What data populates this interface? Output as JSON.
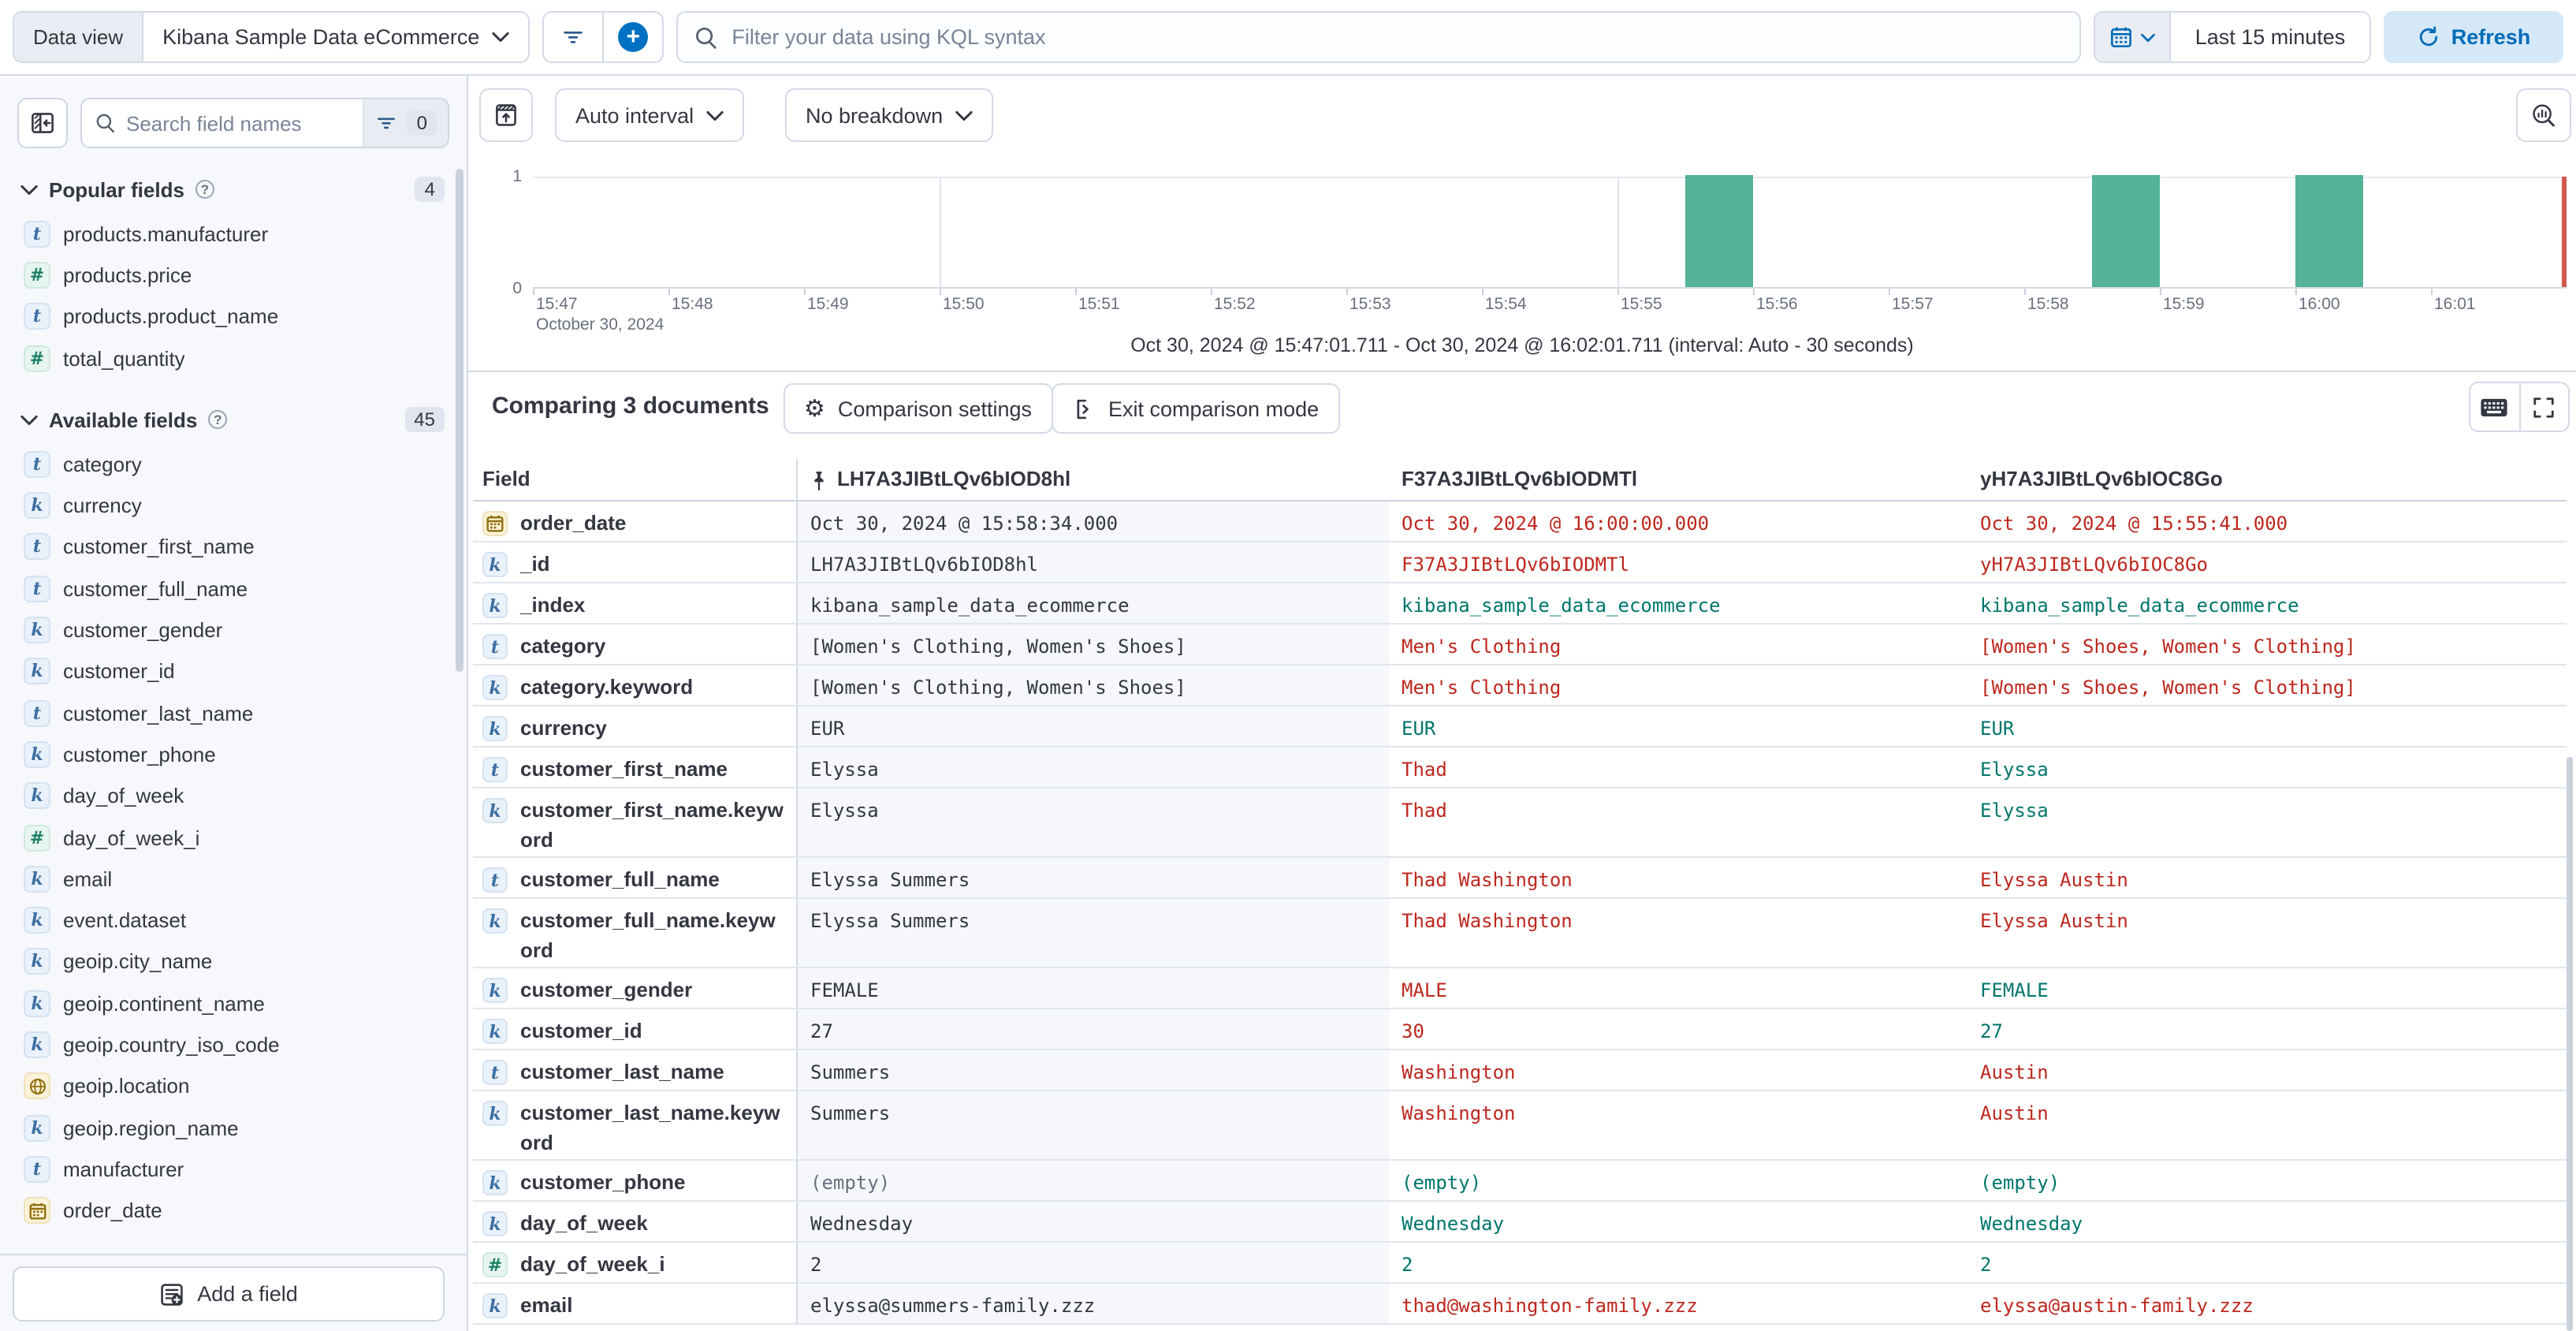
{
  "top_bar": {
    "data_view_label": "Data view",
    "data_view_value": "Kibana Sample Data eCommerce",
    "query_placeholder": "Filter your data using KQL syntax",
    "time_range": "Last 15 minutes",
    "refresh_label": "Refresh"
  },
  "sidebar": {
    "search_placeholder": "Search field names",
    "filter_count": "0",
    "sections": [
      {
        "label": "Popular fields",
        "count": "4",
        "items": [
          {
            "name": "products.manufacturer",
            "type": "text"
          },
          {
            "name": "products.price",
            "type": "number"
          },
          {
            "name": "products.product_name",
            "type": "text"
          },
          {
            "name": "total_quantity",
            "type": "number"
          }
        ]
      },
      {
        "label": "Available fields",
        "count": "45",
        "items": [
          {
            "name": "category",
            "type": "text"
          },
          {
            "name": "currency",
            "type": "keyword"
          },
          {
            "name": "customer_first_name",
            "type": "text"
          },
          {
            "name": "customer_full_name",
            "type": "text"
          },
          {
            "name": "customer_gender",
            "type": "keyword"
          },
          {
            "name": "customer_id",
            "type": "keyword"
          },
          {
            "name": "customer_last_name",
            "type": "text"
          },
          {
            "name": "customer_phone",
            "type": "keyword"
          },
          {
            "name": "day_of_week",
            "type": "keyword"
          },
          {
            "name": "day_of_week_i",
            "type": "number"
          },
          {
            "name": "email",
            "type": "keyword"
          },
          {
            "name": "event.dataset",
            "type": "keyword"
          },
          {
            "name": "geoip.city_name",
            "type": "keyword"
          },
          {
            "name": "geoip.continent_name",
            "type": "keyword"
          },
          {
            "name": "geoip.country_iso_code",
            "type": "keyword"
          },
          {
            "name": "geoip.location",
            "type": "geo"
          },
          {
            "name": "geoip.region_name",
            "type": "keyword"
          },
          {
            "name": "manufacturer",
            "type": "text"
          },
          {
            "name": "order_date",
            "type": "date"
          }
        ]
      }
    ],
    "add_field_label": "Add a field"
  },
  "chart": {
    "interval_label": "Auto interval",
    "breakdown_label": "No breakdown",
    "type": "bar",
    "y_top": "1",
    "y_bottom": "0",
    "ylim": [
      0,
      1
    ],
    "x_ticks": [
      "15:47",
      "15:48",
      "15:49",
      "15:50",
      "15:51",
      "15:52",
      "15:53",
      "15:54",
      "15:55",
      "15:56",
      "15:57",
      "15:58",
      "15:59",
      "16:00",
      "16:01"
    ],
    "x_date_label": "October 30, 2024",
    "gridline_minutes": [
      3,
      8,
      13
    ],
    "bars": [
      {
        "label": "15:55:30",
        "start_min": 8.5,
        "width_min": 0.5,
        "value": 1
      },
      {
        "label": "15:58:30",
        "start_min": 11.5,
        "width_min": 0.5,
        "value": 1
      },
      {
        "label": "16:00:00",
        "start_min": 13.0,
        "width_min": 0.5,
        "value": 1
      }
    ],
    "bar_color": "#54B399",
    "footer": "Oct 30, 2024 @ 15:47:01.711 - Oct 30, 2024 @ 16:02:01.711 (interval: Auto - 30 seconds)"
  },
  "comparison": {
    "title": "Comparing 3 documents",
    "settings_label": "Comparison settings",
    "exit_label": "Exit comparison mode"
  },
  "table": {
    "field_header": "Field",
    "doc_columns": [
      {
        "id": "LH7A3JIBtLQv6bIOD8hl",
        "pinned": true
      },
      {
        "id": "F37A3JIBtLQv6bIODMTl",
        "pinned": false
      },
      {
        "id": "yH7A3JIBtLQv6bIOC8Go",
        "pinned": false
      }
    ],
    "rows": [
      {
        "field": "order_date",
        "type": "date",
        "cells": [
          {
            "t": "Oct 30, 2024 @ 15:58:34.000",
            "s": "base"
          },
          {
            "t": "Oct 30, 2024 @ 16:00:00.000",
            "s": "diff"
          },
          {
            "t": "Oct 30, 2024 @ 15:55:41.000",
            "s": "diff"
          }
        ]
      },
      {
        "field": "_id",
        "type": "keyword",
        "cells": [
          {
            "t": "LH7A3JIBtLQv6bIOD8hl",
            "s": "base"
          },
          {
            "t": "F37A3JIBtLQv6bIODMTl",
            "s": "diff"
          },
          {
            "t": "yH7A3JIBtLQv6bIOC8Go",
            "s": "diff"
          }
        ]
      },
      {
        "field": "_index",
        "type": "keyword",
        "cells": [
          {
            "t": "kibana_sample_data_ecommerce",
            "s": "base"
          },
          {
            "t": "kibana_sample_data_ecommerce",
            "s": "match"
          },
          {
            "t": "kibana_sample_data_ecommerce",
            "s": "match"
          }
        ]
      },
      {
        "field": "category",
        "type": "text",
        "cells": [
          {
            "t": "[Women's Clothing, Women's Shoes]",
            "s": "base"
          },
          {
            "t": "Men's Clothing",
            "s": "diff"
          },
          {
            "t": "[Women's Shoes, Women's Clothing]",
            "s": "diff"
          }
        ]
      },
      {
        "field": "category.keyword",
        "type": "keyword",
        "cells": [
          {
            "t": "[Women's Clothing, Women's Shoes]",
            "s": "base"
          },
          {
            "t": "Men's Clothing",
            "s": "diff"
          },
          {
            "t": "[Women's Shoes, Women's Clothing]",
            "s": "diff"
          }
        ]
      },
      {
        "field": "currency",
        "type": "keyword",
        "cells": [
          {
            "t": "EUR",
            "s": "base"
          },
          {
            "t": "EUR",
            "s": "match"
          },
          {
            "t": "EUR",
            "s": "match"
          }
        ]
      },
      {
        "field": "customer_first_name",
        "type": "text",
        "cells": [
          {
            "t": "Elyssa",
            "s": "base"
          },
          {
            "t": "Thad",
            "s": "diff"
          },
          {
            "t": "Elyssa",
            "s": "match"
          }
        ]
      },
      {
        "field": "customer_first_name.keyword",
        "type": "keyword",
        "cells": [
          {
            "t": "Elyssa",
            "s": "base"
          },
          {
            "t": "Thad",
            "s": "diff"
          },
          {
            "t": "Elyssa",
            "s": "match"
          }
        ]
      },
      {
        "field": "customer_full_name",
        "type": "text",
        "cells": [
          {
            "t": "Elyssa Summers",
            "s": "base"
          },
          {
            "t": "Thad Washington",
            "s": "diff"
          },
          {
            "t": "Elyssa Austin",
            "s": "diff"
          }
        ]
      },
      {
        "field": "customer_full_name.keyword",
        "type": "keyword",
        "cells": [
          {
            "t": "Elyssa Summers",
            "s": "base"
          },
          {
            "t": "Thad Washington",
            "s": "diff"
          },
          {
            "t": "Elyssa Austin",
            "s": "diff"
          }
        ]
      },
      {
        "field": "customer_gender",
        "type": "keyword",
        "cells": [
          {
            "t": "FEMALE",
            "s": "base"
          },
          {
            "t": "MALE",
            "s": "diff"
          },
          {
            "t": "FEMALE",
            "s": "match"
          }
        ]
      },
      {
        "field": "customer_id",
        "type": "keyword",
        "cells": [
          {
            "t": "27",
            "s": "base"
          },
          {
            "t": "30",
            "s": "diff"
          },
          {
            "t": "27",
            "s": "match"
          }
        ]
      },
      {
        "field": "customer_last_name",
        "type": "text",
        "cells": [
          {
            "t": "Summers",
            "s": "base"
          },
          {
            "t": "Washington",
            "s": "diff"
          },
          {
            "t": "Austin",
            "s": "diff"
          }
        ]
      },
      {
        "field": "customer_last_name.keyword",
        "type": "keyword",
        "cells": [
          {
            "t": "Summers",
            "s": "base"
          },
          {
            "t": "Washington",
            "s": "diff"
          },
          {
            "t": "Austin",
            "s": "diff"
          }
        ]
      },
      {
        "field": "customer_phone",
        "type": "keyword",
        "cells": [
          {
            "t": "(empty)",
            "s": "muted"
          },
          {
            "t": "(empty)",
            "s": "match"
          },
          {
            "t": "(empty)",
            "s": "match"
          }
        ]
      },
      {
        "field": "day_of_week",
        "type": "keyword",
        "cells": [
          {
            "t": "Wednesday",
            "s": "base"
          },
          {
            "t": "Wednesday",
            "s": "match"
          },
          {
            "t": "Wednesday",
            "s": "match"
          }
        ]
      },
      {
        "field": "day_of_week_i",
        "type": "number",
        "cells": [
          {
            "t": "2",
            "s": "base"
          },
          {
            "t": "2",
            "s": "match"
          },
          {
            "t": "2",
            "s": "match"
          }
        ]
      },
      {
        "field": "email",
        "type": "keyword",
        "cells": [
          {
            "t": "elyssa@summers-family.zzz",
            "s": "base"
          },
          {
            "t": "thad@washington-family.zzz",
            "s": "diff"
          },
          {
            "t": "elyssa@austin-family.zzz",
            "s": "diff"
          }
        ]
      }
    ]
  },
  "colors": {
    "accent_blue": "#0071C2",
    "refresh_bg": "#D5E8F8",
    "bar_teal": "#54B399",
    "diff_red": "#BD271E",
    "match_teal": "#00766C",
    "border": "#D3DAE6",
    "sidebar_bg": "#F7F8FC",
    "pinned_col_bg": "#F5F7FA",
    "now_marker": "#D4584E"
  }
}
